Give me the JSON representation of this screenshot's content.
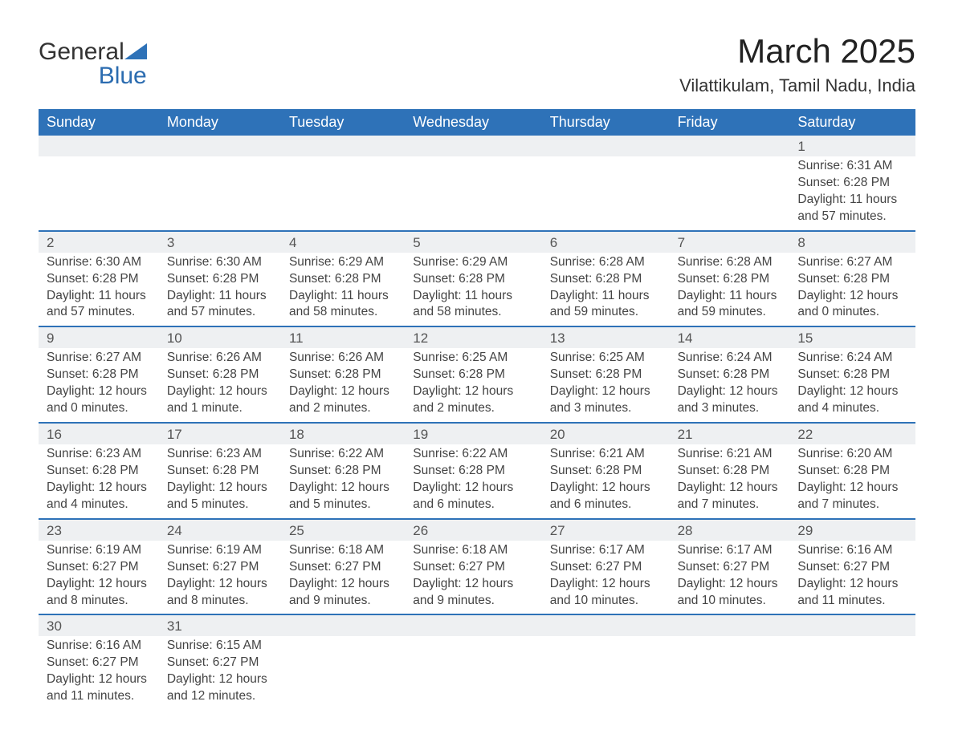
{
  "brand": {
    "name_part1": "General",
    "name_part2": "Blue",
    "logo_color": "#2e72b8"
  },
  "header": {
    "month_title": "March 2025",
    "location": "Vilattikulam, Tamil Nadu, India"
  },
  "colors": {
    "header_bg": "#2e72b8",
    "header_text": "#ffffff",
    "day_row_bg": "#eef0f2",
    "row_border": "#2e72b8",
    "body_text": "#444444"
  },
  "weekdays": [
    "Sunday",
    "Monday",
    "Tuesday",
    "Wednesday",
    "Thursday",
    "Friday",
    "Saturday"
  ],
  "weeks": [
    [
      null,
      null,
      null,
      null,
      null,
      null,
      {
        "day": "1",
        "sunrise": "Sunrise: 6:31 AM",
        "sunset": "Sunset: 6:28 PM",
        "daylight": "Daylight: 11 hours and 57 minutes."
      }
    ],
    [
      {
        "day": "2",
        "sunrise": "Sunrise: 6:30 AM",
        "sunset": "Sunset: 6:28 PM",
        "daylight": "Daylight: 11 hours and 57 minutes."
      },
      {
        "day": "3",
        "sunrise": "Sunrise: 6:30 AM",
        "sunset": "Sunset: 6:28 PM",
        "daylight": "Daylight: 11 hours and 57 minutes."
      },
      {
        "day": "4",
        "sunrise": "Sunrise: 6:29 AM",
        "sunset": "Sunset: 6:28 PM",
        "daylight": "Daylight: 11 hours and 58 minutes."
      },
      {
        "day": "5",
        "sunrise": "Sunrise: 6:29 AM",
        "sunset": "Sunset: 6:28 PM",
        "daylight": "Daylight: 11 hours and 58 minutes."
      },
      {
        "day": "6",
        "sunrise": "Sunrise: 6:28 AM",
        "sunset": "Sunset: 6:28 PM",
        "daylight": "Daylight: 11 hours and 59 minutes."
      },
      {
        "day": "7",
        "sunrise": "Sunrise: 6:28 AM",
        "sunset": "Sunset: 6:28 PM",
        "daylight": "Daylight: 11 hours and 59 minutes."
      },
      {
        "day": "8",
        "sunrise": "Sunrise: 6:27 AM",
        "sunset": "Sunset: 6:28 PM",
        "daylight": "Daylight: 12 hours and 0 minutes."
      }
    ],
    [
      {
        "day": "9",
        "sunrise": "Sunrise: 6:27 AM",
        "sunset": "Sunset: 6:28 PM",
        "daylight": "Daylight: 12 hours and 0 minutes."
      },
      {
        "day": "10",
        "sunrise": "Sunrise: 6:26 AM",
        "sunset": "Sunset: 6:28 PM",
        "daylight": "Daylight: 12 hours and 1 minute."
      },
      {
        "day": "11",
        "sunrise": "Sunrise: 6:26 AM",
        "sunset": "Sunset: 6:28 PM",
        "daylight": "Daylight: 12 hours and 2 minutes."
      },
      {
        "day": "12",
        "sunrise": "Sunrise: 6:25 AM",
        "sunset": "Sunset: 6:28 PM",
        "daylight": "Daylight: 12 hours and 2 minutes."
      },
      {
        "day": "13",
        "sunrise": "Sunrise: 6:25 AM",
        "sunset": "Sunset: 6:28 PM",
        "daylight": "Daylight: 12 hours and 3 minutes."
      },
      {
        "day": "14",
        "sunrise": "Sunrise: 6:24 AM",
        "sunset": "Sunset: 6:28 PM",
        "daylight": "Daylight: 12 hours and 3 minutes."
      },
      {
        "day": "15",
        "sunrise": "Sunrise: 6:24 AM",
        "sunset": "Sunset: 6:28 PM",
        "daylight": "Daylight: 12 hours and 4 minutes."
      }
    ],
    [
      {
        "day": "16",
        "sunrise": "Sunrise: 6:23 AM",
        "sunset": "Sunset: 6:28 PM",
        "daylight": "Daylight: 12 hours and 4 minutes."
      },
      {
        "day": "17",
        "sunrise": "Sunrise: 6:23 AM",
        "sunset": "Sunset: 6:28 PM",
        "daylight": "Daylight: 12 hours and 5 minutes."
      },
      {
        "day": "18",
        "sunrise": "Sunrise: 6:22 AM",
        "sunset": "Sunset: 6:28 PM",
        "daylight": "Daylight: 12 hours and 5 minutes."
      },
      {
        "day": "19",
        "sunrise": "Sunrise: 6:22 AM",
        "sunset": "Sunset: 6:28 PM",
        "daylight": "Daylight: 12 hours and 6 minutes."
      },
      {
        "day": "20",
        "sunrise": "Sunrise: 6:21 AM",
        "sunset": "Sunset: 6:28 PM",
        "daylight": "Daylight: 12 hours and 6 minutes."
      },
      {
        "day": "21",
        "sunrise": "Sunrise: 6:21 AM",
        "sunset": "Sunset: 6:28 PM",
        "daylight": "Daylight: 12 hours and 7 minutes."
      },
      {
        "day": "22",
        "sunrise": "Sunrise: 6:20 AM",
        "sunset": "Sunset: 6:28 PM",
        "daylight": "Daylight: 12 hours and 7 minutes."
      }
    ],
    [
      {
        "day": "23",
        "sunrise": "Sunrise: 6:19 AM",
        "sunset": "Sunset: 6:27 PM",
        "daylight": "Daylight: 12 hours and 8 minutes."
      },
      {
        "day": "24",
        "sunrise": "Sunrise: 6:19 AM",
        "sunset": "Sunset: 6:27 PM",
        "daylight": "Daylight: 12 hours and 8 minutes."
      },
      {
        "day": "25",
        "sunrise": "Sunrise: 6:18 AM",
        "sunset": "Sunset: 6:27 PM",
        "daylight": "Daylight: 12 hours and 9 minutes."
      },
      {
        "day": "26",
        "sunrise": "Sunrise: 6:18 AM",
        "sunset": "Sunset: 6:27 PM",
        "daylight": "Daylight: 12 hours and 9 minutes."
      },
      {
        "day": "27",
        "sunrise": "Sunrise: 6:17 AM",
        "sunset": "Sunset: 6:27 PM",
        "daylight": "Daylight: 12 hours and 10 minutes."
      },
      {
        "day": "28",
        "sunrise": "Sunrise: 6:17 AM",
        "sunset": "Sunset: 6:27 PM",
        "daylight": "Daylight: 12 hours and 10 minutes."
      },
      {
        "day": "29",
        "sunrise": "Sunrise: 6:16 AM",
        "sunset": "Sunset: 6:27 PM",
        "daylight": "Daylight: 12 hours and 11 minutes."
      }
    ],
    [
      {
        "day": "30",
        "sunrise": "Sunrise: 6:16 AM",
        "sunset": "Sunset: 6:27 PM",
        "daylight": "Daylight: 12 hours and 11 minutes."
      },
      {
        "day": "31",
        "sunrise": "Sunrise: 6:15 AM",
        "sunset": "Sunset: 6:27 PM",
        "daylight": "Daylight: 12 hours and 12 minutes."
      },
      null,
      null,
      null,
      null,
      null
    ]
  ]
}
